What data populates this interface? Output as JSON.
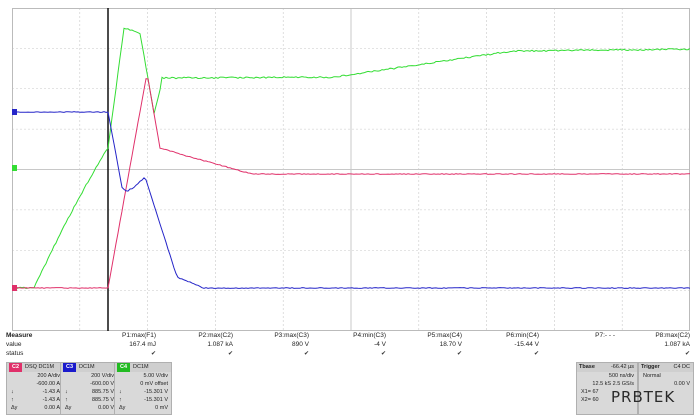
{
  "measure": {
    "header_label": "Measure",
    "value_label": "value",
    "status_label": "status",
    "items": [
      {
        "name": "P1:max(F1)",
        "value": "167.4 mJ",
        "status": "✔"
      },
      {
        "name": "P2:max(C2)",
        "value": "1.087 kA",
        "status": "✔"
      },
      {
        "name": "P3:max(C3)",
        "value": "890 V",
        "status": "✔"
      },
      {
        "name": "P4:min(C3)",
        "value": "-4 V",
        "status": "✔"
      },
      {
        "name": "P5:max(C4)",
        "value": "18.70 V",
        "status": "✔"
      },
      {
        "name": "P6:min(C4)",
        "value": "-15.44 V",
        "status": "✔"
      },
      {
        "name": "P7:- - -",
        "value": "",
        "status": ""
      },
      {
        "name": "P8:max(C2)",
        "value": "1.087 kA",
        "status": "✔"
      }
    ]
  },
  "channels": [
    {
      "tag": "C2",
      "tag_color": "#e0306a",
      "coupling": "DSQ DC1M",
      "lines": [
        "200 A/div",
        "-600.00 A",
        "-1.43 A",
        "-1.43 A",
        "0.00 A"
      ],
      "prefixes": [
        "",
        "",
        "↓",
        "↑",
        "Δy"
      ]
    },
    {
      "tag": "C3",
      "tag_color": "#1a1acc",
      "coupling": "DC1M",
      "lines": [
        "200 V/div",
        "-600.00 V",
        "885.75 V",
        "885.75 V",
        "0.00 V"
      ],
      "prefixes": [
        "",
        "",
        "↓",
        "↑",
        "Δy"
      ]
    },
    {
      "tag": "C4",
      "tag_color": "#22bb22",
      "coupling": "DC1M",
      "lines": [
        "5.00 V/div",
        "0 mV offset",
        "-15.301 V",
        "-15.301 V",
        "0 mV"
      ],
      "prefixes": [
        "",
        "",
        "↓",
        "↑",
        "Δy"
      ]
    }
  ],
  "timebase": {
    "label": "Tbase",
    "value": "-66.42 µs",
    "rate": "500 ns/div",
    "samples": "12.5 kS  2.5 GS/s",
    "x1": "X1=",
    "x2": "X2=",
    "x1_val": "67",
    "x2_val": "60"
  },
  "trigger": {
    "label": "Trigger",
    "chan": "C4 DC",
    "mode": "Normal",
    "level": "0.00 V"
  },
  "logo": "PRBTEK",
  "colors": {
    "c2": "#e0306a",
    "c3": "#2525c8",
    "c4": "#33dd33",
    "grid": "#c8c8c8"
  }
}
